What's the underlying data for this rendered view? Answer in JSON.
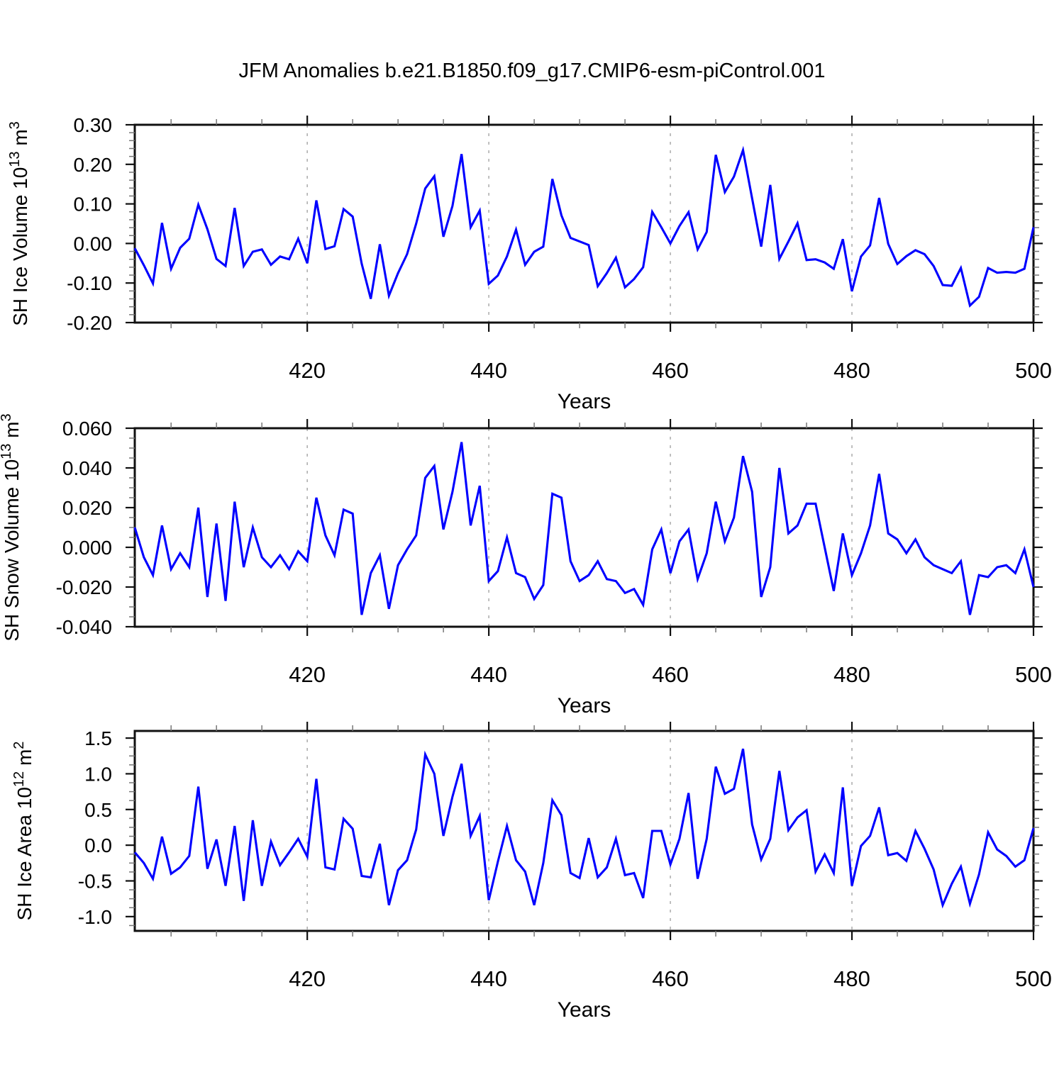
{
  "title": "JFM Anomalies b.e21.B1850.f09_g17.CMIP6-esm-piControl.001",
  "style": {
    "line_color": "#0000ff",
    "grid_color": "#b0b0b0",
    "frame_color": "#111111",
    "major_tick_color": "#111111",
    "minor_tick_color": "#777777",
    "text_color": "#000000",
    "background": "#ffffff"
  },
  "chart_data": {
    "type": "line",
    "title": "JFM Anomalies b.e21.B1850.f09_g17.CMIP6-esm-piControl.001",
    "legend_position": "none",
    "grid": "vertical dashed gridlines at x = 420, 440, 460, 480",
    "x_axis": {
      "label": "Years",
      "range": [
        401,
        500
      ],
      "major_ticks": [
        420,
        440,
        460,
        480,
        500
      ],
      "major_tick_labels": [
        "420",
        "440",
        "460",
        "480",
        "500"
      ],
      "minor_step": 5,
      "gridlines": [
        420,
        440,
        460,
        480
      ]
    },
    "x": [
      401,
      402,
      403,
      404,
      405,
      406,
      407,
      408,
      409,
      410,
      411,
      412,
      413,
      414,
      415,
      416,
      417,
      418,
      419,
      420,
      421,
      422,
      423,
      424,
      425,
      426,
      427,
      428,
      429,
      430,
      431,
      432,
      433,
      434,
      435,
      436,
      437,
      438,
      439,
      440,
      441,
      442,
      443,
      444,
      445,
      446,
      447,
      448,
      449,
      450,
      451,
      452,
      453,
      454,
      455,
      456,
      457,
      458,
      459,
      460,
      461,
      462,
      463,
      464,
      465,
      466,
      467,
      468,
      469,
      470,
      471,
      472,
      473,
      474,
      475,
      476,
      477,
      478,
      479,
      480,
      481,
      482,
      483,
      484,
      485,
      486,
      487,
      488,
      489,
      490,
      491,
      492,
      493,
      494,
      495,
      496,
      497,
      498,
      499,
      500
    ],
    "panels": [
      {
        "name": "sh-ice-volume",
        "ylabel_text": "SH Ice Volume 10^13 m^3",
        "ylabel_parts": [
          {
            "text": "SH Ice Volume 10"
          },
          {
            "text": "13",
            "sup": true
          },
          {
            "text": " m"
          },
          {
            "text": "3",
            "sup": true
          }
        ],
        "ylim": [
          -0.2,
          0.3
        ],
        "y_minor_step": 0.02,
        "yticks": [
          {
            "value": 0.3,
            "label": "0.30"
          },
          {
            "value": 0.2,
            "label": "0.20"
          },
          {
            "value": 0.1,
            "label": "0.10"
          },
          {
            "value": 0.0,
            "label": "0.00"
          },
          {
            "value": -0.1,
            "label": "-0.10"
          },
          {
            "value": -0.2,
            "label": "-0.20"
          }
        ],
        "values": [
          -0.012,
          -0.055,
          -0.101,
          0.052,
          -0.064,
          -0.011,
          0.012,
          0.098,
          0.036,
          -0.039,
          -0.057,
          0.09,
          -0.057,
          -0.021,
          -0.015,
          -0.054,
          -0.033,
          -0.04,
          0.012,
          -0.05,
          0.109,
          -0.014,
          -0.007,
          0.087,
          0.068,
          -0.051,
          -0.14,
          -0.002,
          -0.132,
          -0.075,
          -0.027,
          0.05,
          0.139,
          0.17,
          0.017,
          0.095,
          0.226,
          0.041,
          0.083,
          -0.102,
          -0.081,
          -0.033,
          0.035,
          -0.054,
          -0.021,
          -0.008,
          0.163,
          0.071,
          0.014,
          0.005,
          -0.004,
          -0.108,
          -0.075,
          -0.036,
          -0.111,
          -0.09,
          -0.06,
          0.08,
          0.041,
          0.0,
          0.044,
          0.079,
          -0.015,
          0.029,
          0.224,
          0.13,
          0.169,
          0.236,
          0.114,
          -0.008,
          0.148,
          -0.039,
          0.005,
          0.051,
          -0.042,
          -0.04,
          -0.048,
          -0.064,
          0.011,
          -0.121,
          -0.033,
          -0.005,
          0.115,
          -0.001,
          -0.052,
          -0.032,
          -0.017,
          -0.027,
          -0.057,
          -0.105,
          -0.107,
          -0.062,
          -0.157,
          -0.135,
          -0.062,
          -0.074,
          -0.072,
          -0.074,
          -0.064,
          0.041
        ]
      },
      {
        "name": "sh-snow-volume",
        "ylabel_text": "SH Snow Volume 10^13 m^3",
        "ylabel_parts": [
          {
            "text": "SH Snow Volume 10"
          },
          {
            "text": "13",
            "sup": true
          },
          {
            "text": " m"
          },
          {
            "text": "3",
            "sup": true
          }
        ],
        "ylim": [
          -0.04,
          0.06
        ],
        "y_minor_step": 0.005,
        "yticks": [
          {
            "value": 0.06,
            "label": "0.060"
          },
          {
            "value": 0.04,
            "label": "0.040"
          },
          {
            "value": 0.02,
            "label": "0.020"
          },
          {
            "value": 0.0,
            "label": "0.000"
          },
          {
            "value": -0.02,
            "label": "-0.020"
          },
          {
            "value": -0.04,
            "label": "-0.040"
          }
        ],
        "values": [
          0.01,
          -0.005,
          -0.014,
          0.011,
          -0.011,
          -0.003,
          -0.01,
          0.02,
          -0.025,
          0.012,
          -0.027,
          0.023,
          -0.01,
          0.01,
          -0.005,
          -0.01,
          -0.004,
          -0.011,
          -0.002,
          -0.007,
          0.025,
          0.006,
          -0.004,
          0.019,
          0.017,
          -0.034,
          -0.013,
          -0.004,
          -0.031,
          -0.009,
          -0.001,
          0.006,
          0.035,
          0.041,
          0.009,
          0.028,
          0.053,
          0.011,
          0.031,
          -0.017,
          -0.012,
          0.005,
          -0.013,
          -0.015,
          -0.026,
          -0.019,
          0.027,
          0.025,
          -0.007,
          -0.017,
          -0.014,
          -0.007,
          -0.016,
          -0.017,
          -0.023,
          -0.021,
          -0.029,
          -0.001,
          0.009,
          -0.013,
          0.003,
          0.009,
          -0.016,
          -0.003,
          0.023,
          0.003,
          0.015,
          0.046,
          0.028,
          -0.025,
          -0.01,
          0.04,
          0.007,
          0.011,
          0.022,
          0.022,
          0.0,
          -0.022,
          0.007,
          -0.014,
          -0.003,
          0.011,
          0.037,
          0.007,
          0.004,
          -0.003,
          0.004,
          -0.005,
          -0.009,
          -0.011,
          -0.013,
          -0.007,
          -0.034,
          -0.014,
          -0.015,
          -0.01,
          -0.009,
          -0.013,
          -0.001,
          -0.02
        ]
      },
      {
        "name": "sh-ice-area",
        "ylabel_text": "SH Ice Area 10^12 m^2",
        "ylabel_parts": [
          {
            "text": "SH Ice Area 10"
          },
          {
            "text": "12",
            "sup": true
          },
          {
            "text": " m"
          },
          {
            "text": "2",
            "sup": true
          }
        ],
        "ylim": [
          -1.2,
          1.6
        ],
        "y_minor_step": 0.125,
        "yticks": [
          {
            "value": 1.5,
            "label": "1.5"
          },
          {
            "value": 1.0,
            "label": "1.0"
          },
          {
            "value": 0.5,
            "label": "0.5"
          },
          {
            "value": 0.0,
            "label": "0.0"
          },
          {
            "value": -0.5,
            "label": "-0.5"
          },
          {
            "value": -1.0,
            "label": "-1.0"
          }
        ],
        "values": [
          -0.1,
          -0.25,
          -0.47,
          0.12,
          -0.4,
          -0.31,
          -0.15,
          0.82,
          -0.33,
          0.08,
          -0.57,
          0.27,
          -0.78,
          0.35,
          -0.57,
          0.05,
          -0.28,
          -0.1,
          0.09,
          -0.16,
          0.93,
          -0.31,
          -0.34,
          0.37,
          0.23,
          -0.43,
          -0.45,
          0.02,
          -0.84,
          -0.35,
          -0.21,
          0.22,
          1.27,
          1.0,
          0.13,
          0.68,
          1.14,
          0.13,
          0.41,
          -0.77,
          -0.23,
          0.27,
          -0.21,
          -0.37,
          -0.84,
          -0.25,
          0.63,
          0.42,
          -0.39,
          -0.46,
          0.1,
          -0.45,
          -0.31,
          0.09,
          -0.42,
          -0.39,
          -0.74,
          0.2,
          0.2,
          -0.27,
          0.09,
          0.73,
          -0.47,
          0.09,
          1.1,
          0.72,
          0.79,
          1.35,
          0.29,
          -0.2,
          0.09,
          1.04,
          0.21,
          0.39,
          0.49,
          -0.37,
          -0.13,
          -0.39,
          0.81,
          -0.57,
          -0.01,
          0.13,
          0.53,
          -0.14,
          -0.11,
          -0.22,
          0.2,
          -0.05,
          -0.34,
          -0.84,
          -0.54,
          -0.3,
          -0.82,
          -0.41,
          0.18,
          -0.06,
          -0.15,
          -0.3,
          -0.21,
          0.24
        ]
      }
    ]
  }
}
